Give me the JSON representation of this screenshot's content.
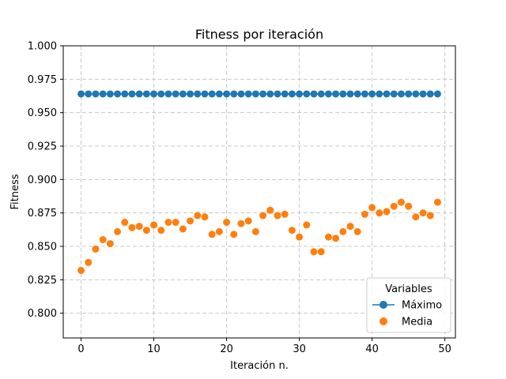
{
  "chart_data": {
    "type": "scatter",
    "title": "Fitness por iteración",
    "xlabel": "Iteración n.",
    "ylabel": "Fitness",
    "xlim": [
      -2.45,
      51.45
    ],
    "ylim": [
      0.7815,
      1.0
    ],
    "xticks": [
      0,
      10,
      20,
      30,
      40,
      50
    ],
    "xtick_labels": [
      "0",
      "10",
      "20",
      "30",
      "40",
      "50"
    ],
    "yticks": [
      0.8,
      0.825,
      0.85,
      0.875,
      0.9,
      0.925,
      0.95,
      0.975,
      1.0
    ],
    "ytick_labels": [
      "0.800",
      "0.825",
      "0.850",
      "0.875",
      "0.900",
      "0.925",
      "0.950",
      "0.975",
      "1.000"
    ],
    "grid": true,
    "legend": {
      "title": "Variables",
      "position": "lower-right"
    },
    "series": [
      {
        "name": "Máximo",
        "style": "line-marker",
        "color": "#1f77b4",
        "x": [
          0,
          1,
          2,
          3,
          4,
          5,
          6,
          7,
          8,
          9,
          10,
          11,
          12,
          13,
          14,
          15,
          16,
          17,
          18,
          19,
          20,
          21,
          22,
          23,
          24,
          25,
          26,
          27,
          28,
          29,
          30,
          31,
          32,
          33,
          34,
          35,
          36,
          37,
          38,
          39,
          40,
          41,
          42,
          43,
          44,
          45,
          46,
          47,
          48,
          49
        ],
        "y": [
          0.964,
          0.964,
          0.964,
          0.964,
          0.964,
          0.964,
          0.964,
          0.964,
          0.964,
          0.964,
          0.964,
          0.964,
          0.964,
          0.964,
          0.964,
          0.964,
          0.964,
          0.964,
          0.964,
          0.964,
          0.964,
          0.964,
          0.964,
          0.964,
          0.964,
          0.964,
          0.964,
          0.964,
          0.964,
          0.964,
          0.964,
          0.964,
          0.964,
          0.964,
          0.964,
          0.964,
          0.964,
          0.964,
          0.964,
          0.964,
          0.964,
          0.964,
          0.964,
          0.964,
          0.964,
          0.964,
          0.964,
          0.964,
          0.964,
          0.964
        ]
      },
      {
        "name": "Media",
        "style": "marker",
        "color": "#ff7f0e",
        "x": [
          0,
          1,
          2,
          3,
          4,
          5,
          6,
          7,
          8,
          9,
          10,
          11,
          12,
          13,
          14,
          15,
          16,
          17,
          18,
          19,
          20,
          21,
          22,
          23,
          24,
          25,
          26,
          27,
          28,
          29,
          30,
          31,
          32,
          33,
          34,
          35,
          36,
          37,
          38,
          39,
          40,
          41,
          42,
          43,
          44,
          45,
          46,
          47,
          48,
          49
        ],
        "y": [
          0.832,
          0.838,
          0.848,
          0.855,
          0.852,
          0.861,
          0.868,
          0.864,
          0.865,
          0.862,
          0.866,
          0.862,
          0.868,
          0.868,
          0.863,
          0.869,
          0.873,
          0.872,
          0.859,
          0.861,
          0.868,
          0.859,
          0.867,
          0.869,
          0.861,
          0.873,
          0.877,
          0.873,
          0.874,
          0.862,
          0.857,
          0.866,
          0.846,
          0.846,
          0.857,
          0.856,
          0.861,
          0.865,
          0.861,
          0.874,
          0.879,
          0.875,
          0.876,
          0.88,
          0.883,
          0.88,
          0.872,
          0.875,
          0.873,
          0.883
        ]
      }
    ]
  }
}
